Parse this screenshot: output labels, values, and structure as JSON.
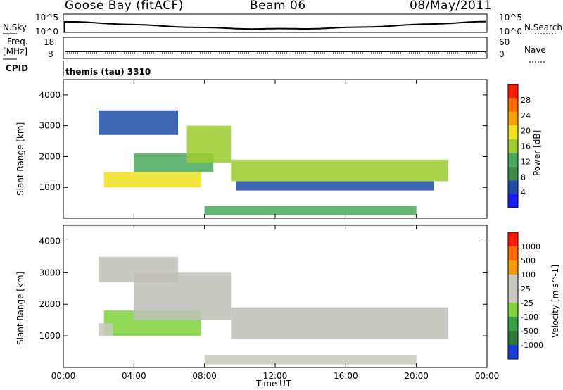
{
  "header": {
    "station": "Goose Bay (fitACF)",
    "beam": "Beam 06",
    "date": "08/May/2011"
  },
  "strip_panel": {
    "nsky_label": "N.Sky",
    "nsearch_label": "N.Search",
    "freq_label": "Freq.",
    "freq_unit": "[MHz]",
    "nave_label": "Nave",
    "cpid_label": "CPID",
    "cpid_text": "themis (tau) 3310",
    "nsky_ticks": [
      "10^5",
      "10^0"
    ],
    "nsearch_ticks": [
      "10^5",
      "10^0"
    ],
    "freq_ticks": [
      "18",
      "8"
    ],
    "nave_ticks": [
      "60",
      "0"
    ]
  },
  "colors": {
    "power_scale": [
      "#1c1cff",
      "#1c4ea8",
      "#3b8a4a",
      "#4aa85c",
      "#9ccc2e",
      "#f0e020",
      "#f5a000",
      "#ff6a00",
      "#ff1a00"
    ],
    "velocity_scale": [
      "#1a3fd9",
      "#2b7a3a",
      "#35a045",
      "#7fd23a",
      "#c8c8c0",
      "#c8c8c0",
      "#f59a00",
      "#ff6a00",
      "#ff1a00"
    ],
    "ground_scatter": "#c0c0b8"
  },
  "chart_data": [
    {
      "type": "heatmap",
      "title": "",
      "xlabel": "Time UT",
      "ylabel": "Slant Range [km]",
      "xlim": [
        "00:00",
        "24:00"
      ],
      "ylim": [
        0,
        4500
      ],
      "x_ticks": [
        "00:00",
        "04:00",
        "08:00",
        "12:00",
        "16:00",
        "20:00",
        "00:00"
      ],
      "y_ticks": [
        "1000",
        "2000",
        "3000",
        "4000"
      ],
      "colorbar_label": "Power [dB]",
      "colorbar_ticks": [
        "4",
        "8",
        "12",
        "16",
        "20",
        "24",
        "28"
      ],
      "value_range": [
        0,
        30
      ],
      "regions": [
        {
          "start_h": 2.3,
          "end_h": 7.8,
          "range_lo": 1000,
          "range_hi": 1500,
          "value": 17
        },
        {
          "start_h": 4.0,
          "end_h": 8.5,
          "range_lo": 1500,
          "range_hi": 2100,
          "value": 12
        },
        {
          "start_h": 7.0,
          "end_h": 9.5,
          "range_lo": 1800,
          "range_hi": 3000,
          "value": 16
        },
        {
          "start_h": 9.5,
          "end_h": 21.8,
          "range_lo": 1200,
          "range_hi": 1900,
          "value": 15
        },
        {
          "start_h": 9.8,
          "end_h": 21.0,
          "range_lo": 900,
          "range_hi": 1200,
          "value": 6
        },
        {
          "start_h": 2.0,
          "end_h": 6.5,
          "range_lo": 2700,
          "range_hi": 3500,
          "value": 5
        },
        {
          "start_h": 8.0,
          "end_h": 20.0,
          "range_lo": 100,
          "range_hi": 400,
          "value": 10
        }
      ]
    },
    {
      "type": "heatmap",
      "title": "",
      "xlabel": "Time UT",
      "ylabel": "Slant Range [km]",
      "xlim": [
        "00:00",
        "24:00"
      ],
      "ylim": [
        0,
        4500
      ],
      "x_ticks": [
        "00:00",
        "04:00",
        "08:00",
        "12:00",
        "16:00",
        "20:00",
        "00:00"
      ],
      "y_ticks": [
        "1000",
        "2000",
        "3000",
        "4000"
      ],
      "colorbar_label": "Velocity [m s^-1]",
      "colorbar_ticks": [
        "1000",
        "500",
        "100",
        "25",
        "-25",
        "-100",
        "-500",
        "-1000"
      ],
      "value_range": [
        -1000,
        1000
      ],
      "regions": [
        {
          "start_h": 2.3,
          "end_h": 7.8,
          "range_lo": 1000,
          "range_hi": 1800,
          "value": -300
        },
        {
          "start_h": 2.0,
          "end_h": 2.8,
          "range_lo": 1000,
          "range_hi": 1400,
          "value": 150
        },
        {
          "start_h": 4.0,
          "end_h": 9.5,
          "range_lo": 1500,
          "range_hi": 3000,
          "value": 0
        },
        {
          "start_h": 9.5,
          "end_h": 21.8,
          "range_lo": 900,
          "range_hi": 1900,
          "value": 0
        },
        {
          "start_h": 2.0,
          "end_h": 6.5,
          "range_lo": 2700,
          "range_hi": 3500,
          "value": 0
        },
        {
          "start_h": 8.0,
          "end_h": 20.0,
          "range_lo": 100,
          "range_hi": 400,
          "value": 120
        }
      ]
    }
  ]
}
